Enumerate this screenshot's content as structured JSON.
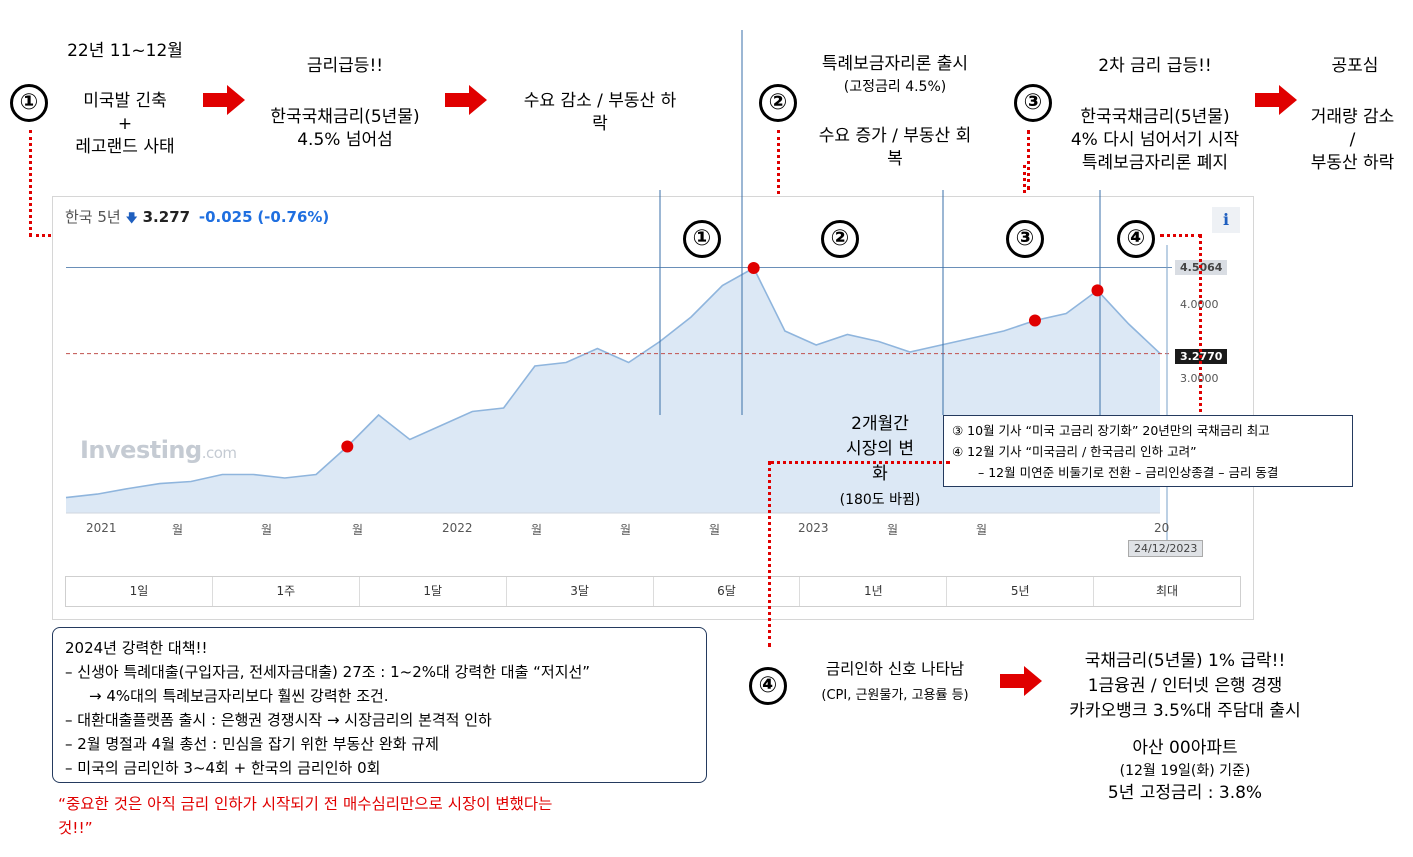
{
  "top": {
    "s1": {
      "badge": "①",
      "period": "22년 11~12월",
      "cause_l1": "미국발 긴축",
      "cause_plus": "+",
      "cause_l2": "레고랜드 사태",
      "title": "금리급등!!",
      "detail_l1": "한국국채금리(5년물)",
      "detail_l2": "4.5% 넘어섬",
      "result_l1": "수요 감소 / 부동산 하",
      "result_l2": "락"
    },
    "s2": {
      "badge": "②",
      "title": "특례보금자리론 출시",
      "sub": "(고정금리 4.5%)",
      "result_l1": "수요 증가 / 부동산 회",
      "result_l2": "복"
    },
    "s3": {
      "badge": "③",
      "title": "2차 금리 급등!!",
      "detail_l1": "한국국채금리(5년물)",
      "detail_l2": "4% 다시 넘어서기 시작",
      "detail_l3": "특례보금자리론 폐지",
      "fear": "공포심",
      "fear_l1": "거래량 감소",
      "fear_l2": "/",
      "fear_l3": "부동산 하락"
    }
  },
  "chart_header": {
    "name": "한국 5년",
    "arrow": "🡇",
    "value": "3.277",
    "change": "-0.025",
    "change_pct": "(-0.76%)",
    "info": "i"
  },
  "markers": [
    "①",
    "②",
    "③",
    "④"
  ],
  "watermark": {
    "brand": "Investing",
    "suffix": ".com"
  },
  "price_labels": {
    "high": "4.5064",
    "current": "3.2770",
    "date": "24/12/2023"
  },
  "mid_note": {
    "l1": "2개월간",
    "l2": "시장의 변",
    "l3": "화",
    "l4": "(180도 바뀜)"
  },
  "callout": {
    "l1": "③ 10월 기사 “미국 고금리 장기화” 20년만의 국채금리 최고",
    "l2": "④ 12월 기사 “미국금리 / 한국금리 인하 고려”",
    "l3": "– 12월 미연준 비둘기로 전환 – 금리인상종결 – 금리 동결"
  },
  "tabs": [
    "1일",
    "1주",
    "1달",
    "3달",
    "6달",
    "1년",
    "5년",
    "최대"
  ],
  "x_ticks": [
    "2021",
    "월",
    "월",
    "월",
    "2022",
    "월",
    "월",
    "월",
    "2023",
    "월",
    "월",
    "20"
  ],
  "y_ticks": [
    "4.0000",
    "3.0000"
  ],
  "policy_box": {
    "title": "2024년 강력한 대책!!",
    "lines": [
      "– 신생아 특례대출(구입자금, 전세자금대출) 27조 : 1~2%대 강력한 대출 “저지선”",
      "→  4%대의 특례보금자리보다 훨씬 강력한 조건.",
      "– 대환대출플랫폼 출시 : 은행권 경쟁시작 → 시장금리의 본격적 인하",
      "– 2월 명절과 4월 총선 : 민심을 잡기 위한 부동산 완화 규제",
      "– 미국의 금리인하 3~4회 + 한국의 금리인하 0회"
    ]
  },
  "red_quote": {
    "l1": "“중요한 것은 아직 금리 인하가 시작되기 전 매수심리만으로 시장이 변했다는",
    "l2": "것!!”"
  },
  "s4": {
    "badge": "④",
    "signal": "금리인하 신호 나타남",
    "signal_sub": "(CPI, 근원물가, 고용률 등)",
    "r1": "국채금리(5년물) 1% 급락!!",
    "r2": "1금융권 / 인터넷 은행 경쟁",
    "r3": "카카오뱅크 3.5%대 주담대 출시",
    "apt": "아산 00아파트",
    "apt_date": "(12월 19일(화) 기준)",
    "apt_rate": "5년 고정금리 : 3.8%"
  },
  "colors": {
    "accent_red": "#e00000",
    "line": "#8fb5dd",
    "fill": "#dce8f5",
    "navy": "#243a5e"
  },
  "chart_data": {
    "type": "area",
    "title": "한국 5년",
    "x": [
      "2021-01",
      "2021-02",
      "2021-03",
      "2021-04",
      "2021-05",
      "2021-06",
      "2021-07",
      "2021-08",
      "2021-09",
      "2021-10",
      "2021-11",
      "2021-12",
      "2022-01",
      "2022-02",
      "2022-03",
      "2022-04",
      "2022-05",
      "2022-06",
      "2022-07",
      "2022-08",
      "2022-09",
      "2022-10",
      "2022-11",
      "2022-12",
      "2023-01",
      "2023-02",
      "2023-03",
      "2023-04",
      "2023-05",
      "2023-06",
      "2023-07",
      "2023-08",
      "2023-09",
      "2023-10",
      "2023-11",
      "2023-12"
    ],
    "values": [
      1.22,
      1.27,
      1.35,
      1.42,
      1.45,
      1.55,
      1.55,
      1.5,
      1.55,
      1.95,
      2.4,
      2.05,
      2.25,
      2.45,
      2.5,
      3.1,
      3.15,
      3.35,
      3.15,
      3.45,
      3.8,
      4.25,
      4.5,
      3.6,
      3.4,
      3.55,
      3.45,
      3.3,
      3.4,
      3.5,
      3.6,
      3.75,
      3.85,
      4.18,
      3.7,
      3.28
    ],
    "ylim": [
      1.0,
      4.9
    ],
    "y_ticks": [
      3.0,
      4.0
    ],
    "hlines": [
      4.5064,
      3.277
    ],
    "highlight_indices": [
      9,
      22,
      31,
      33
    ]
  }
}
